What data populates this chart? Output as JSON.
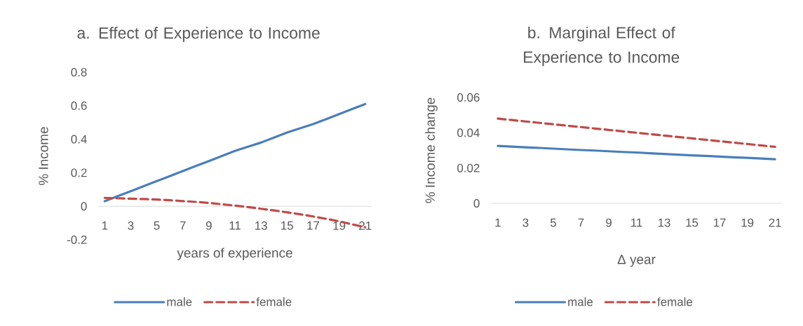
{
  "chart_data": [
    {
      "type": "line",
      "title": "a. Effect of Experience to Income",
      "xlabel": "years of experience",
      "ylabel": "% Income",
      "categories": [
        "1",
        null,
        "3",
        null,
        "5",
        null,
        "7",
        null,
        "9",
        null,
        "11",
        null,
        "13",
        null,
        "15",
        null,
        "17",
        null,
        "19",
        null,
        "21"
      ],
      "series": [
        {
          "name": "male",
          "color": "#4a7ebb",
          "line_style": "solid",
          "values": [
            0.03,
            0.06,
            0.09,
            0.12,
            0.15,
            0.18,
            0.21,
            0.24,
            0.27,
            0.3,
            0.33,
            0.355,
            0.38,
            0.41,
            0.44,
            0.465,
            0.49,
            0.52,
            0.55,
            0.58,
            0.61
          ]
        },
        {
          "name": "female",
          "color": "#be4b48",
          "line_style": "dashed",
          "values": [
            0.05,
            0.048,
            0.045,
            0.043,
            0.04,
            0.036,
            0.031,
            0.026,
            0.02,
            0.012,
            0.004,
            -0.005,
            -0.015,
            -0.025,
            -0.036,
            -0.048,
            -0.061,
            -0.075,
            -0.09,
            -0.108,
            -0.125
          ]
        }
      ],
      "ylim": [
        -0.2,
        0.8
      ],
      "yticks": [
        -0.2,
        0,
        0.2,
        0.4,
        0.6,
        0.8
      ],
      "legend": "bottom"
    },
    {
      "type": "line",
      "title": "b. Marginal Effect of Experience to Income",
      "xlabel": "Δ year",
      "ylabel": "% Income change",
      "categories": [
        "1",
        null,
        "3",
        null,
        "5",
        null,
        "7",
        null,
        "9",
        null,
        "11",
        null,
        "13",
        null,
        "15",
        null,
        "17",
        null,
        "19",
        null,
        "21"
      ],
      "series": [
        {
          "name": "male",
          "color": "#4a7ebb",
          "line_style": "solid",
          "values": [
            0.0325,
            0.0321,
            0.0317,
            0.0314,
            0.031,
            0.0306,
            0.0302,
            0.0299,
            0.0295,
            0.0291,
            0.0288,
            0.0284,
            0.028,
            0.0276,
            0.0272,
            0.0269,
            0.0265,
            0.0261,
            0.0258,
            0.0254,
            0.025
          ]
        },
        {
          "name": "female",
          "color": "#be4b48",
          "line_style": "dashed",
          "values": [
            0.048,
            0.0472,
            0.0464,
            0.0456,
            0.0448,
            0.044,
            0.0432,
            0.0424,
            0.0416,
            0.0408,
            0.04,
            0.0392,
            0.0384,
            0.0376,
            0.0368,
            0.036,
            0.0352,
            0.0344,
            0.0336,
            0.0328,
            0.032
          ]
        }
      ],
      "ylim": [
        0,
        0.06
      ],
      "yticks": [
        0,
        0.02,
        0.04,
        0.06
      ],
      "legend": "bottom"
    }
  ]
}
